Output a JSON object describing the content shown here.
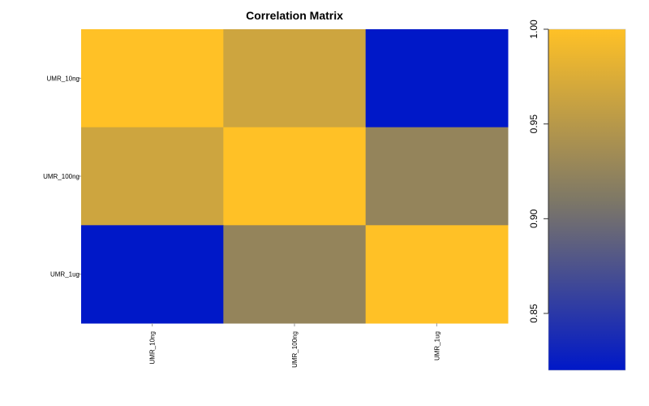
{
  "chart_data": {
    "type": "heatmap",
    "title": "Correlation Matrix",
    "rows": [
      "UMR_10ng",
      "UMR_100ng",
      "UMR_1ug"
    ],
    "columns": [
      "UMR_10ng",
      "UMR_100ng",
      "UMR_1ug"
    ],
    "values": [
      [
        1.0,
        0.965,
        0.82
      ],
      [
        0.965,
        1.0,
        0.925
      ],
      [
        0.82,
        0.925,
        1.0
      ]
    ],
    "colorbar": {
      "range": [
        0.82,
        1.0
      ],
      "ticks": [
        0.85,
        0.9,
        0.95,
        1.0
      ],
      "tick_labels": [
        "0.85",
        "0.90",
        "0.95",
        "1.00"
      ],
      "colors": {
        "low": "#0018C8",
        "mid": "#7E7866",
        "high": "#FFC126"
      }
    }
  }
}
